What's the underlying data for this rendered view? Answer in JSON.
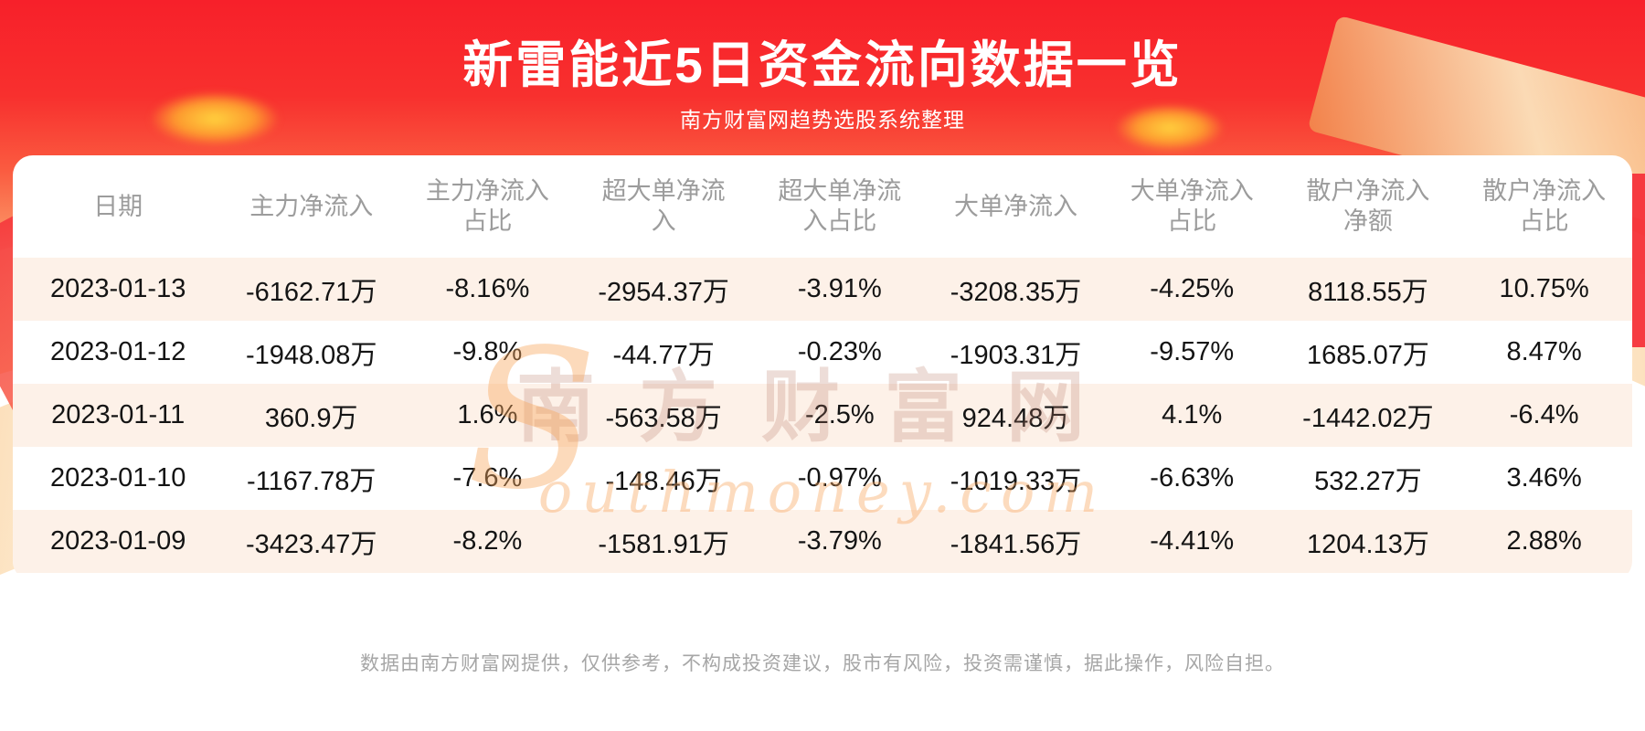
{
  "page": {
    "title": "新雷能近5日资金流向数据一览",
    "subtitle": "南方财富网趋势选股系统整理",
    "footer": "数据由南方财富网提供，仅供参考，不构成投资建议，股市有风险，投资需谨慎，据此操作，风险自担。",
    "watermark": {
      "cn": "南方财富网",
      "en_initial": "S",
      "en_rest": "outhmoney.com"
    }
  },
  "table": {
    "headers": [
      [
        "日期"
      ],
      [
        "主力净流入"
      ],
      [
        "主力净流入",
        "占比"
      ],
      [
        "超大单净流",
        "入"
      ],
      [
        "超大单净流",
        "入占比"
      ],
      [
        "大单净流入"
      ],
      [
        "大单净流入",
        "占比"
      ],
      [
        "散户净流入",
        "净额"
      ],
      [
        "散户净流入",
        "占比"
      ]
    ],
    "rows": [
      [
        "2023-01-13",
        "-6162.71万",
        "-8.16%",
        "-2954.37万",
        "-3.91%",
        "-3208.35万",
        "-4.25%",
        "8118.55万",
        "10.75%"
      ],
      [
        "2023-01-12",
        "-1948.08万",
        "-9.8%",
        "-44.77万",
        "-0.23%",
        "-1903.31万",
        "-9.57%",
        "1685.07万",
        "8.47%"
      ],
      [
        "2023-01-11",
        "360.9万",
        "1.6%",
        "-563.58万",
        "-2.5%",
        "924.48万",
        "4.1%",
        "-1442.02万",
        "-6.4%"
      ],
      [
        "2023-01-10",
        "-1167.78万",
        "-7.6%",
        "-148.46万",
        "-0.97%",
        "-1019.33万",
        "-6.63%",
        "532.27万",
        "3.46%"
      ],
      [
        "2023-01-09",
        "-3423.47万",
        "-8.2%",
        "-1581.91万",
        "-3.79%",
        "-1841.56万",
        "-4.41%",
        "1204.13万",
        "2.88%"
      ]
    ]
  },
  "chart_data": {
    "type": "table",
    "title": "新雷能近5日资金流向数据一览",
    "subtitle": "南方财富网趋势选股系统整理",
    "columns": [
      "日期",
      "主力净流入",
      "主力净流入占比",
      "超大单净流入",
      "超大单净流入占比",
      "大单净流入",
      "大单净流入占比",
      "散户净流入净额",
      "散户净流入占比"
    ],
    "rows": [
      [
        "2023-01-13",
        "-6162.71万",
        "-8.16%",
        "-2954.37万",
        "-3.91%",
        "-3208.35万",
        "-4.25%",
        "8118.55万",
        "10.75%"
      ],
      [
        "2023-01-12",
        "-1948.08万",
        "-9.8%",
        "-44.77万",
        "-0.23%",
        "-1903.31万",
        "-9.57%",
        "1685.07万",
        "8.47%"
      ],
      [
        "2023-01-11",
        "360.9万",
        "1.6%",
        "-563.58万",
        "-2.5%",
        "924.48万",
        "4.1%",
        "-1442.02万",
        "-6.4%"
      ],
      [
        "2023-01-10",
        "-1167.78万",
        "-7.6%",
        "-148.46万",
        "-0.97%",
        "-1019.33万",
        "-6.63%",
        "532.27万",
        "3.46%"
      ],
      [
        "2023-01-09",
        "-3423.47万",
        "-8.2%",
        "-1581.91万",
        "-3.79%",
        "-1841.56万",
        "-4.41%",
        "1204.13万",
        "2.88%"
      ]
    ]
  },
  "colors": {
    "banner_red": "#f7202a",
    "banner_orange": "#fb8a5e",
    "row_stripe": "#fdf1e8",
    "header_text": "#9c9c9c",
    "body_text": "#141414",
    "footer_text": "#a6a6a6",
    "gold_accent": "#ffd23e"
  }
}
